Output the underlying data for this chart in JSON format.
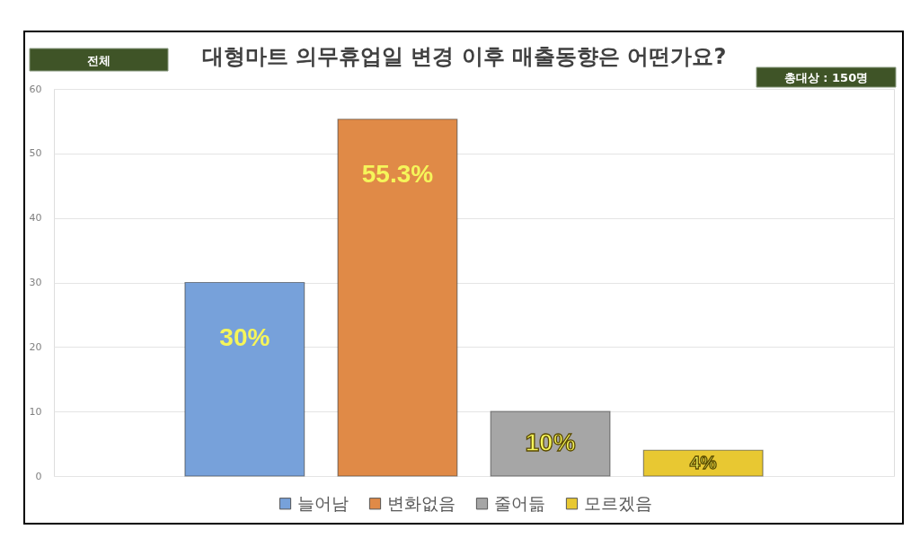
{
  "chart_data": {
    "type": "bar",
    "title": "대형마트 의무휴업일 변경 이후 매출동향은 어떤가요?",
    "annotations": [
      "전체",
      "총대상 : 150명"
    ],
    "categories": [
      null
    ],
    "series": [
      {
        "name": "늘어남",
        "color": "#77a1da",
        "values": [
          30
        ],
        "value_labels": [
          "30%"
        ]
      },
      {
        "name": "변화없음",
        "color": "#e08a47",
        "values": [
          55.3
        ],
        "value_labels": [
          "55.3%"
        ]
      },
      {
        "name": "줄어듦",
        "color": "#a6a6a6",
        "values": [
          10
        ],
        "value_labels": [
          "10%"
        ]
      },
      {
        "name": "모르겠음",
        "color": "#e8c832",
        "values": [
          4
        ],
        "value_labels": [
          "4%"
        ]
      }
    ],
    "ylim": [
      0,
      60
    ],
    "yticks": [
      0,
      10,
      20,
      30,
      40,
      50,
      60
    ],
    "grid": "y",
    "legend": "bottom",
    "tick_labels": "y"
  }
}
